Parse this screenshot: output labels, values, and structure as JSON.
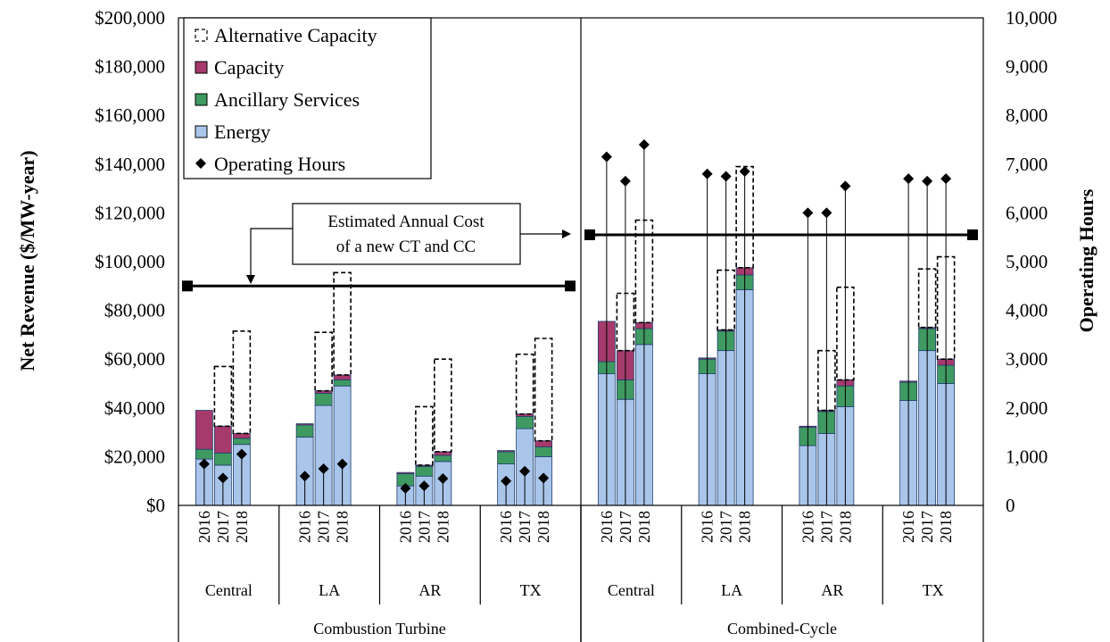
{
  "chart_data": {
    "type": "bar",
    "stacked": true,
    "y_left": {
      "label": "Net Revenue ($/MW-year)",
      "min": 0,
      "max": 200000,
      "step": 20000,
      "tick_labels": [
        "$0",
        "$20,000",
        "$40,000",
        "$60,000",
        "$80,000",
        "$100,000",
        "$120,000",
        "$140,000",
        "$160,000",
        "$180,000",
        "$200,000"
      ]
    },
    "y_right": {
      "label": "Operating Hours",
      "min": 0,
      "max": 10000,
      "step": 1000,
      "tick_labels": [
        "0",
        "1,000",
        "2,000",
        "3,000",
        "4,000",
        "5,000",
        "6,000",
        "7,000",
        "8,000",
        "9,000",
        "10,000"
      ]
    },
    "years": [
      "2016",
      "2017",
      "2018"
    ],
    "regions": [
      "Central",
      "LA",
      "AR",
      "TX"
    ],
    "groups": [
      "Combustion Turbine",
      "Combined-Cycle"
    ],
    "legend": {
      "position": "top-left",
      "entries": [
        "Alternative Capacity",
        "Capacity",
        "Ancillary Services",
        "Energy",
        "Operating Hours"
      ]
    },
    "colors": {
      "energy": "#a9c5ea",
      "ancillary": "#3f9a61",
      "capacity": "#a63a6c",
      "bar_edge": "#1f3f6e",
      "line": "#000000"
    },
    "bars": [
      {
        "group": "Combustion Turbine",
        "region": "Central",
        "year": "2016",
        "energy": 19000,
        "ancillary": 4000,
        "capacity": 16000,
        "alt_capacity_total": null,
        "hours": 850
      },
      {
        "group": "Combustion Turbine",
        "region": "Central",
        "year": "2017",
        "energy": 16500,
        "ancillary": 5000,
        "capacity": 11000,
        "alt_capacity_total": 57000,
        "hours": 560
      },
      {
        "group": "Combustion Turbine",
        "region": "Central",
        "year": "2018",
        "energy": 25000,
        "ancillary": 2500,
        "capacity": 2000,
        "alt_capacity_total": 71500,
        "hours": 1050
      },
      {
        "group": "Combustion Turbine",
        "region": "LA",
        "year": "2016",
        "energy": 28000,
        "ancillary": 5000,
        "capacity": 500,
        "alt_capacity_total": null,
        "hours": 600
      },
      {
        "group": "Combustion Turbine",
        "region": "LA",
        "year": "2017",
        "energy": 41000,
        "ancillary": 5000,
        "capacity": 1000,
        "alt_capacity_total": 71000,
        "hours": 750
      },
      {
        "group": "Combustion Turbine",
        "region": "LA",
        "year": "2018",
        "energy": 49000,
        "ancillary": 2500,
        "capacity": 2000,
        "alt_capacity_total": 95500,
        "hours": 850
      },
      {
        "group": "Combustion Turbine",
        "region": "AR",
        "year": "2016",
        "energy": 8000,
        "ancillary": 5000,
        "capacity": 500,
        "alt_capacity_total": null,
        "hours": 350
      },
      {
        "group": "Combustion Turbine",
        "region": "AR",
        "year": "2017",
        "energy": 12000,
        "ancillary": 4000,
        "capacity": 500,
        "alt_capacity_total": 40500,
        "hours": 400
      },
      {
        "group": "Combustion Turbine",
        "region": "AR",
        "year": "2018",
        "energy": 18000,
        "ancillary": 2500,
        "capacity": 1500,
        "alt_capacity_total": 60000,
        "hours": 550
      },
      {
        "group": "Combustion Turbine",
        "region": "TX",
        "year": "2016",
        "energy": 17000,
        "ancillary": 5000,
        "capacity": 500,
        "alt_capacity_total": null,
        "hours": 500
      },
      {
        "group": "Combustion Turbine",
        "region": "TX",
        "year": "2017",
        "energy": 31500,
        "ancillary": 5000,
        "capacity": 1000,
        "alt_capacity_total": 62000,
        "hours": 700
      },
      {
        "group": "Combustion Turbine",
        "region": "TX",
        "year": "2018",
        "energy": 20000,
        "ancillary": 4000,
        "capacity": 2500,
        "alt_capacity_total": 68500,
        "hours": 560
      },
      {
        "group": "Combined-Cycle",
        "region": "Central",
        "year": "2016",
        "energy": 54000,
        "ancillary": 5000,
        "capacity": 16500,
        "alt_capacity_total": null,
        "hours": 7150
      },
      {
        "group": "Combined-Cycle",
        "region": "Central",
        "year": "2017",
        "energy": 43500,
        "ancillary": 8000,
        "capacity": 12000,
        "alt_capacity_total": 87000,
        "hours": 6650
      },
      {
        "group": "Combined-Cycle",
        "region": "Central",
        "year": "2018",
        "energy": 66000,
        "ancillary": 6500,
        "capacity": 2500,
        "alt_capacity_total": 117000,
        "hours": 7400
      },
      {
        "group": "Combined-Cycle",
        "region": "LA",
        "year": "2016",
        "energy": 54000,
        "ancillary": 6000,
        "capacity": 500,
        "alt_capacity_total": null,
        "hours": 6800
      },
      {
        "group": "Combined-Cycle",
        "region": "LA",
        "year": "2017",
        "energy": 63500,
        "ancillary": 8000,
        "capacity": 500,
        "alt_capacity_total": 96500,
        "hours": 6750
      },
      {
        "group": "Combined-Cycle",
        "region": "LA",
        "year": "2018",
        "energy": 88500,
        "ancillary": 6000,
        "capacity": 3000,
        "alt_capacity_total": 139000,
        "hours": 6850
      },
      {
        "group": "Combined-Cycle",
        "region": "AR",
        "year": "2016",
        "energy": 24500,
        "ancillary": 7500,
        "capacity": 500,
        "alt_capacity_total": null,
        "hours": 6000
      },
      {
        "group": "Combined-Cycle",
        "region": "AR",
        "year": "2017",
        "energy": 29500,
        "ancillary": 9000,
        "capacity": 500,
        "alt_capacity_total": 63500,
        "hours": 6000
      },
      {
        "group": "Combined-Cycle",
        "region": "AR",
        "year": "2018",
        "energy": 40500,
        "ancillary": 8500,
        "capacity": 2500,
        "alt_capacity_total": 89500,
        "hours": 6550
      },
      {
        "group": "Combined-Cycle",
        "region": "TX",
        "year": "2016",
        "energy": 43000,
        "ancillary": 7500,
        "capacity": 500,
        "alt_capacity_total": null,
        "hours": 6700
      },
      {
        "group": "Combined-Cycle",
        "region": "TX",
        "year": "2017",
        "energy": 63500,
        "ancillary": 9000,
        "capacity": 500,
        "alt_capacity_total": 97000,
        "hours": 6650
      },
      {
        "group": "Combined-Cycle",
        "region": "TX",
        "year": "2018",
        "energy": 50000,
        "ancillary": 7500,
        "capacity": 2500,
        "alt_capacity_total": 102000,
        "hours": 6700
      }
    ],
    "cost_lines": [
      {
        "group": "Combustion Turbine",
        "value": 90000
      },
      {
        "group": "Combined-Cycle",
        "value": 111000
      }
    ],
    "annotation": {
      "lines": [
        "Estimated Annual Cost",
        "of a new CT and CC"
      ]
    }
  }
}
